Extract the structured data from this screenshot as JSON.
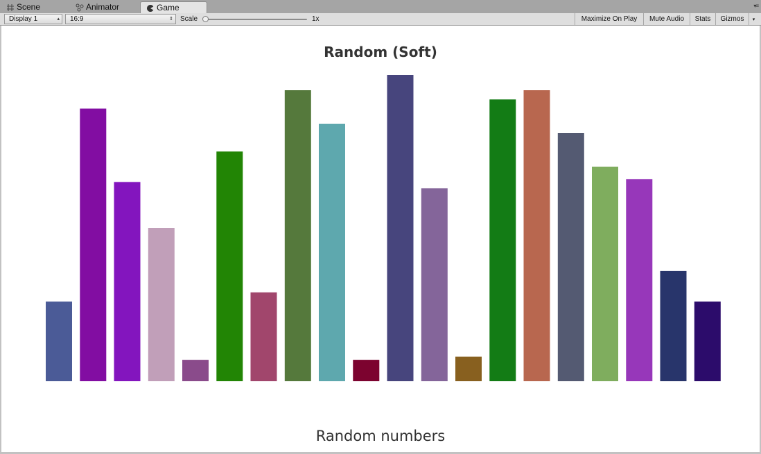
{
  "tabs": [
    {
      "label": "Scene",
      "icon": "grid-icon"
    },
    {
      "label": "Animator",
      "icon": "animator-icon"
    },
    {
      "label": "Game",
      "icon": "game-icon",
      "active": true
    }
  ],
  "toolbar": {
    "display": "Display 1",
    "aspect": "16:9",
    "scale_label": "Scale",
    "scale_value": "1x",
    "maximize": "Maximize On Play",
    "mute": "Mute Audio",
    "stats": "Stats",
    "gizmos": "Gizmos"
  },
  "chart_data": {
    "type": "bar",
    "title": "Random (Soft)",
    "xlabel": "Random numbers",
    "ylabel": "",
    "ylim": [
      0,
      100
    ],
    "grid": false,
    "values": [
      26,
      89,
      65,
      50,
      7,
      75,
      29,
      95,
      84,
      7,
      100,
      63,
      8,
      92,
      95,
      81,
      70,
      66,
      36,
      26
    ],
    "colors": [
      "#4b5b97",
      "#820da2",
      "#8315be",
      "#c19fb9",
      "#8a4b8b",
      "#228505",
      "#a1466c",
      "#55793c",
      "#5ea8ae",
      "#7c032f",
      "#47457d",
      "#84659a",
      "#88601f",
      "#137c15",
      "#b8674f",
      "#545a72",
      "#7fad5e",
      "#9737ba",
      "#28356b",
      "#2c0c6b"
    ]
  }
}
